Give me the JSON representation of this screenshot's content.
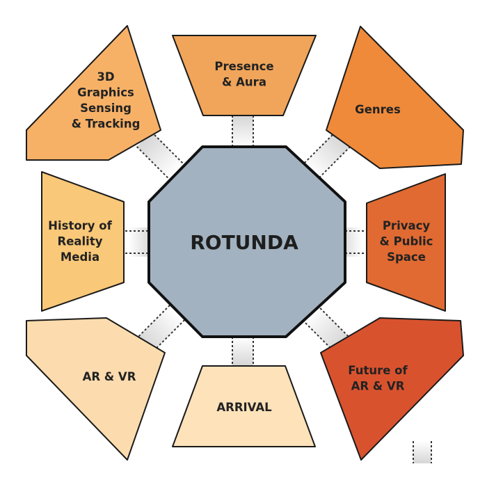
{
  "hub": {
    "label": "ROTUNDA",
    "color": "#a3b2c0"
  },
  "rooms": {
    "top": {
      "lines": [
        "Presence",
        "& Aura"
      ],
      "color": "#f0a55a"
    },
    "top_right": {
      "lines": [
        "Genres"
      ],
      "color": "#ef8a3a"
    },
    "right": {
      "lines": [
        "Privacy",
        "& Public",
        "Space"
      ],
      "color": "#e06a32"
    },
    "bottom_right": {
      "lines": [
        "Future of",
        "AR & VR"
      ],
      "color": "#d9522e"
    },
    "bottom": {
      "lines": [
        "ARRIVAL"
      ],
      "color": "#fde2ba"
    },
    "bottom_left": {
      "lines": [
        "AR & VR"
      ],
      "color": "#fcdcae"
    },
    "left": {
      "lines": [
        "History of",
        "Reality",
        "Media"
      ],
      "color": "#f9c878"
    },
    "top_left": {
      "lines": [
        "3D",
        "Graphics",
        "Sensing",
        "& Tracking"
      ],
      "color": "#f7b167"
    }
  },
  "corridor_color": "#d6d6d6"
}
